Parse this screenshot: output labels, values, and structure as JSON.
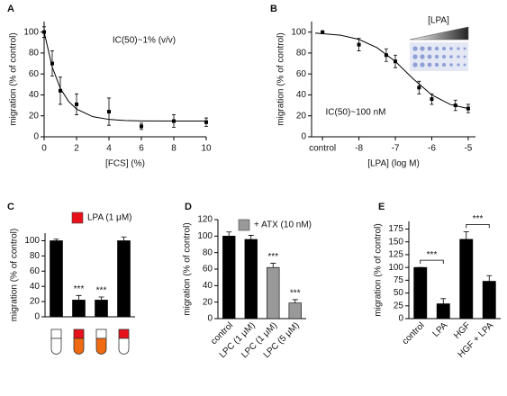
{
  "chart_data": [
    {
      "type": "scatter",
      "panel_label": "A",
      "annotation": "IC(50)~1% (v/v)",
      "x_label": "[FCS] (%)",
      "y_label": "migration (% of control)",
      "x": [
        0,
        0.5,
        1,
        2,
        4,
        6,
        8,
        10
      ],
      "values": [
        100,
        70,
        44,
        31,
        24,
        10,
        15,
        14
      ],
      "errors": [
        5,
        12,
        13,
        10,
        13,
        3,
        6,
        4
      ],
      "curve": {
        "x": [
          0,
          0.5,
          1,
          1.5,
          2,
          3,
          4,
          5,
          6,
          8,
          10
        ],
        "values": [
          100,
          66.6,
          46.3,
          34,
          26.5,
          19.2,
          16.6,
          15.6,
          15.2,
          15,
          15
        ]
      },
      "color": "#000",
      "xlim": [
        0,
        10
      ],
      "xticks": [
        0,
        2,
        4,
        6,
        8,
        10
      ],
      "ylim": [
        0,
        110
      ],
      "yticks": [
        0,
        20,
        40,
        60,
        80,
        100
      ]
    },
    {
      "type": "scatter",
      "panel_label": "B",
      "annotation": "IC(50)~100 nM",
      "inset_label": "[LPA]",
      "x_label": "[LPA] (log M)",
      "y_label": "migration (% of control)",
      "x": [
        -9,
        -8,
        -7.25,
        -7,
        -6.35,
        -6,
        -5.35,
        -5
      ],
      "values": [
        100,
        88,
        78,
        72,
        47,
        36,
        30,
        27
      ],
      "errors": [
        1,
        6,
        6,
        6,
        6,
        5,
        5,
        4
      ],
      "curve": {
        "x": [
          -9.2,
          -8.5,
          -8,
          -7.5,
          -7,
          -6.5,
          -6,
          -5.5,
          -5
        ],
        "values": [
          99,
          97,
          93,
          85,
          72,
          55,
          40,
          31,
          27
        ]
      },
      "color": "#000",
      "xlim": [
        -9.3,
        -4.8
      ],
      "xticks": [
        {
          "value": -9,
          "label": "control"
        },
        -8,
        -7,
        -6,
        -5
      ],
      "ylim": [
        0,
        110
      ],
      "yticks": [
        0,
        20,
        40,
        60,
        80,
        100
      ]
    },
    {
      "type": "bar",
      "panel_label": "C",
      "y_label": "migration (% of control)",
      "categories": [
        null,
        null,
        null,
        null
      ],
      "values": [
        100,
        22,
        22,
        100
      ],
      "errors": [
        2,
        6,
        4,
        5
      ],
      "colors": [
        "#000",
        "#000",
        "#000",
        "#000"
      ],
      "significance": [
        null,
        "***",
        "***",
        null
      ],
      "legend": {
        "label": "LPA (1 μM)",
        "color": "#e8101a"
      },
      "ylim": [
        0,
        110
      ],
      "yticks": [
        0,
        20,
        40,
        60,
        80,
        100
      ]
    },
    {
      "type": "bar",
      "panel_label": "D",
      "y_label": "migration (% of control)",
      "categories": [
        "control",
        "LPC (1 μM)",
        "LPC (1 μM)",
        "LPC (5 μM)"
      ],
      "values": [
        100,
        96,
        62,
        19
      ],
      "errors": [
        5,
        5,
        5,
        4
      ],
      "colors": [
        "#000",
        "#000",
        "#999",
        "#999"
      ],
      "significance": [
        null,
        null,
        "***",
        "***"
      ],
      "legend": {
        "label": "+ ATX (10 nM)",
        "color": "#999"
      },
      "ylim": [
        0,
        120
      ],
      "yticks": [
        0,
        20,
        40,
        60,
        80,
        100,
        120
      ]
    },
    {
      "type": "bar",
      "panel_label": "E",
      "y_label": "migration (% of control)",
      "categories": [
        "control",
        "LPA",
        "HGF",
        "HGF + LPA"
      ],
      "values": [
        100,
        29,
        155,
        73
      ],
      "errors": [
        0,
        10,
        15,
        11
      ],
      "colors": [
        "#000",
        "#000",
        "#000",
        "#000"
      ],
      "brackets": [
        {
          "label": "***"
        },
        {
          "label": "***"
        }
      ],
      "ylim": [
        0,
        190
      ],
      "yticks": [
        0,
        25,
        50,
        75,
        100,
        125,
        150,
        175
      ]
    }
  ]
}
